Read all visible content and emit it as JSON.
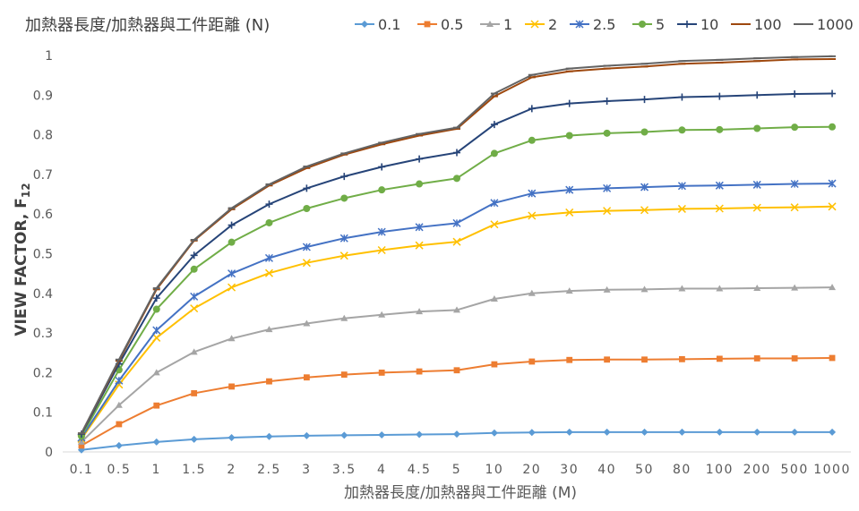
{
  "chart_data": {
    "type": "line",
    "title": "加熱器長度/加熱器與工件距離 (N)",
    "xlabel": "加熱器長度/加熱器與工件距離 (M)",
    "ylabel": "VIEW FACTOR, F",
    "ylabel_sub": "12",
    "ylim": [
      0,
      1
    ],
    "yticks": [
      "0",
      "0.1",
      "0.2",
      "0.3",
      "0.4",
      "0.5",
      "0.6",
      "0.7",
      "0.8",
      "0.9",
      "1"
    ],
    "grid": false,
    "legend_position": "top",
    "x_scale": "categorical",
    "categories": [
      "0.1",
      "0.5",
      "1",
      "1.5",
      "2",
      "2.5",
      "3",
      "3.5",
      "4",
      "4.5",
      "5",
      "10",
      "20",
      "30",
      "40",
      "50",
      "80",
      "100",
      "200",
      "500",
      "1000"
    ],
    "series": [
      {
        "name": "0.1",
        "color": "#5B9BD5",
        "marker": "diamond",
        "values": [
          0.005,
          0.016,
          0.025,
          0.032,
          0.036,
          0.039,
          0.041,
          0.042,
          0.043,
          0.044,
          0.045,
          0.048,
          0.049,
          0.05,
          0.05,
          0.05,
          0.05,
          0.05,
          0.05,
          0.05,
          0.05
        ]
      },
      {
        "name": "0.5",
        "color": "#ED7D31",
        "marker": "square",
        "values": [
          0.016,
          0.07,
          0.117,
          0.148,
          0.165,
          0.178,
          0.188,
          0.195,
          0.2,
          0.203,
          0.206,
          0.221,
          0.228,
          0.232,
          0.233,
          0.233,
          0.234,
          0.235,
          0.236,
          0.236,
          0.237
        ]
      },
      {
        "name": "1",
        "color": "#A5A5A5",
        "marker": "triangle",
        "values": [
          0.025,
          0.118,
          0.2,
          0.252,
          0.286,
          0.309,
          0.324,
          0.337,
          0.346,
          0.354,
          0.358,
          0.386,
          0.4,
          0.406,
          0.409,
          0.41,
          0.412,
          0.412,
          0.413,
          0.414,
          0.415
        ]
      },
      {
        "name": "2",
        "color": "#FFC000",
        "marker": "x",
        "values": [
          0.033,
          0.17,
          0.288,
          0.362,
          0.415,
          0.451,
          0.477,
          0.495,
          0.509,
          0.521,
          0.53,
          0.574,
          0.596,
          0.604,
          0.608,
          0.61,
          0.613,
          0.614,
          0.616,
          0.617,
          0.619
        ]
      },
      {
        "name": "2.5",
        "color": "#4472C4",
        "marker": "star",
        "values": [
          0.036,
          0.18,
          0.307,
          0.392,
          0.45,
          0.489,
          0.517,
          0.539,
          0.555,
          0.567,
          0.577,
          0.628,
          0.652,
          0.661,
          0.665,
          0.668,
          0.671,
          0.672,
          0.674,
          0.676,
          0.677
        ]
      },
      {
        "name": "5",
        "color": "#70AD47",
        "marker": "circle",
        "values": [
          0.04,
          0.207,
          0.36,
          0.461,
          0.529,
          0.578,
          0.614,
          0.64,
          0.661,
          0.676,
          0.69,
          0.753,
          0.786,
          0.798,
          0.804,
          0.807,
          0.812,
          0.813,
          0.816,
          0.819,
          0.82
        ]
      },
      {
        "name": "10",
        "color": "#264478",
        "marker": "plus",
        "values": [
          0.045,
          0.222,
          0.388,
          0.496,
          0.572,
          0.625,
          0.665,
          0.695,
          0.719,
          0.739,
          0.755,
          0.826,
          0.866,
          0.879,
          0.885,
          0.889,
          0.895,
          0.897,
          0.9,
          0.903,
          0.904
        ]
      },
      {
        "name": "100",
        "color": "#9E480E",
        "marker": "dash",
        "values": [
          0.047,
          0.23,
          0.41,
          0.533,
          0.612,
          0.672,
          0.716,
          0.75,
          0.776,
          0.798,
          0.815,
          0.897,
          0.945,
          0.96,
          0.967,
          0.972,
          0.979,
          0.982,
          0.986,
          0.99,
          0.991
        ]
      },
      {
        "name": "1000",
        "color": "#636363",
        "marker": "dash",
        "values": [
          0.047,
          0.233,
          0.413,
          0.535,
          0.615,
          0.675,
          0.72,
          0.753,
          0.78,
          0.802,
          0.818,
          0.904,
          0.951,
          0.967,
          0.974,
          0.979,
          0.986,
          0.989,
          0.993,
          0.996,
          0.998
        ]
      }
    ]
  }
}
